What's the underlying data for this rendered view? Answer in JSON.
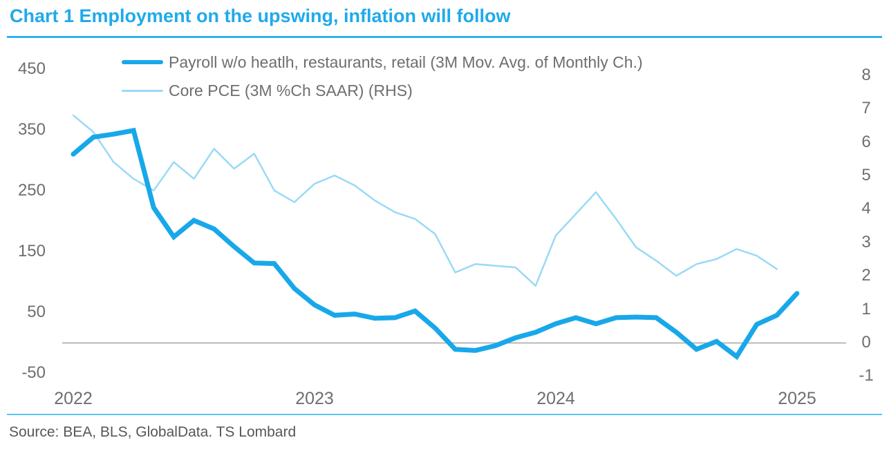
{
  "title": "Chart 1 Employment on the upswing, inflation will follow",
  "source": "Source: BEA, BLS, GlobalData. TS Lombard",
  "colors": {
    "title_blue": "#1FAAEB",
    "title_underline": "#2FB3EC",
    "payroll_line": "#18A8EA",
    "core_pce_line": "#9AD9F7",
    "axis_text": "#6E6E6E",
    "zero_line": "#A5A5A5",
    "bottom_rule": "#55C4F1",
    "source_text": "#575757"
  },
  "chart_data": {
    "type": "line",
    "title": "Chart 1 Employment on the upswing, inflation will follow",
    "x_frequency": "monthly",
    "x_start": "2022-01",
    "x_tick_labels": [
      "2022",
      "2023",
      "2024",
      "2025"
    ],
    "left_axis": {
      "ticks": [
        "450",
        "350",
        "250",
        "150",
        "50",
        "-50"
      ],
      "range": [
        -50,
        450
      ]
    },
    "right_axis": {
      "ticks": [
        "8",
        "7",
        "6",
        "5",
        "4",
        "3",
        "2",
        "1",
        "0",
        "-1"
      ],
      "range": [
        -1,
        8
      ]
    },
    "grid": "zero-line-only",
    "legend_position": "top-left",
    "series": [
      {
        "name": "Payroll w/o heatlh, restaurants, retail (3M Mov. Avg. of Monthly Ch.)",
        "axis": "left",
        "color": "#18A8EA",
        "stroke_width": 7,
        "values": [
          310,
          338,
          343,
          349,
          222,
          174,
          201,
          187,
          158,
          131,
          130,
          89,
          62,
          45,
          47,
          40,
          41,
          52,
          24,
          -11,
          -13,
          -5,
          8,
          17,
          31,
          41,
          31,
          41,
          42,
          41,
          17,
          -11,
          2,
          -23,
          30,
          45,
          81
        ]
      },
      {
        "name": "Core PCE (3M %Ch SAAR) (RHS)",
        "axis": "right",
        "color": "#9AD9F7",
        "stroke_width": 2.5,
        "values": [
          6.8,
          6.3,
          5.4,
          4.9,
          4.55,
          5.4,
          4.9,
          5.8,
          5.2,
          5.65,
          4.55,
          4.2,
          4.75,
          5.0,
          4.7,
          4.25,
          3.9,
          3.7,
          3.25,
          2.1,
          2.35,
          2.3,
          2.25,
          1.7,
          3.2,
          3.85,
          4.5,
          3.7,
          2.85,
          2.45,
          2.0,
          2.35,
          2.5,
          2.8,
          2.6,
          2.2
        ]
      }
    ]
  }
}
